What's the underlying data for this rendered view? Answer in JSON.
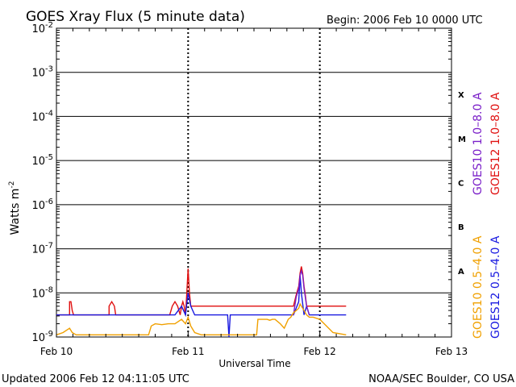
{
  "chart_data": {
    "type": "line",
    "title": "GOES Xray Flux (5 minute data)",
    "begin_label": "Begin:  2006 Feb 10 0000 UTC",
    "xlabel": "Universal Time",
    "ylabel": "Watts m",
    "ylabel_sup": "-2",
    "yscale": "log",
    "ylim_exp": [
      -9,
      -2
    ],
    "y_ticks": [
      {
        "base": "10",
        "exp": "-2",
        "value": -2
      },
      {
        "base": "10",
        "exp": "-3",
        "value": -3
      },
      {
        "base": "10",
        "exp": "-4",
        "value": -4
      },
      {
        "base": "10",
        "exp": "-5",
        "value": -5
      },
      {
        "base": "10",
        "exp": "-6",
        "value": -6
      },
      {
        "base": "10",
        "exp": "-7",
        "value": -7
      },
      {
        "base": "10",
        "exp": "-8",
        "value": -8
      },
      {
        "base": "10",
        "exp": "-9",
        "value": -9
      }
    ],
    "x_ticks": [
      {
        "label": "Feb 10",
        "value": 0
      },
      {
        "label": "Feb 11",
        "value": 1
      },
      {
        "label": "Feb 12",
        "value": 2
      },
      {
        "label": "Feb 13",
        "value": 3
      }
    ],
    "xlim_days": [
      0,
      3
    ],
    "class_labels": [
      {
        "label": "X",
        "value": -3.5
      },
      {
        "label": "M",
        "value": -4.5
      },
      {
        "label": "C",
        "value": -5.5
      },
      {
        "label": "B",
        "value": -6.5
      },
      {
        "label": "A",
        "value": -7.5
      }
    ],
    "legend_right": [
      {
        "name": "GOES10 1.0–8.0 A",
        "color": "#7a1ec8"
      },
      {
        "name": "GOES12 1.0–8.0 A",
        "color": "#e01010"
      }
    ],
    "legend_bottom": [
      {
        "name": "GOES10 0.5–4.0 A",
        "color": "#f0a000"
      },
      {
        "name": "GOES12 0.5–4.0 A",
        "color": "#1818e0"
      }
    ],
    "series": [
      {
        "name": "GOES12 1.0–8.0 A",
        "color": "#e01010",
        "x": [
          0,
          0.1,
          0.1,
          0.11,
          0.12,
          0.13,
          0.4,
          0.4,
          0.42,
          0.44,
          0.45,
          0.6,
          0.61,
          0.62,
          0.63,
          0.65,
          0.66,
          0.68,
          0.7,
          0.72,
          0.74,
          0.76,
          0.8,
          0.82,
          0.84,
          0.86,
          0.88,
          0.9,
          0.92,
          0.94,
          0.95,
          0.96,
          0.97,
          0.98,
          0.99,
          1.0,
          1.01,
          1.02,
          1.04,
          1.08,
          1.3,
          1.4,
          1.5,
          1.55,
          1.6,
          1.62,
          1.64,
          1.65,
          1.66,
          1.68,
          1.7,
          1.75,
          1.8,
          1.82,
          1.84,
          1.85,
          1.86,
          1.87,
          1.88,
          1.89,
          1.9,
          1.92,
          1.93,
          1.95,
          2.0,
          2.1,
          2.2
        ],
        "y": [
          -8.5,
          -8.5,
          -8.2,
          -8.2,
          -8.4,
          -8.5,
          -8.5,
          -8.3,
          -8.2,
          -8.3,
          -8.5,
          -8.5,
          -8.5,
          -8.5,
          -8.5,
          -8.5,
          -8.5,
          -8.5,
          -8.5,
          -8.5,
          -8.5,
          -8.5,
          -8.5,
          -8.5,
          -8.5,
          -8.5,
          -8.3,
          -8.2,
          -8.3,
          -8.5,
          -8.3,
          -8.2,
          -8.3,
          -8.5,
          -8.0,
          -7.45,
          -8.0,
          -8.3,
          -8.3,
          -8.3,
          -8.3,
          -8.3,
          -8.3,
          -8.3,
          -8.3,
          -8.3,
          -8.3,
          -8.3,
          -8.3,
          -8.3,
          -8.3,
          -8.3,
          -8.3,
          -8.05,
          -7.85,
          -7.55,
          -7.4,
          -7.55,
          -7.85,
          -8.05,
          -8.3,
          -8.3,
          -8.3,
          -8.3,
          -8.3,
          -8.3,
          -8.3
        ]
      },
      {
        "name": "GOES12 0.5–4.0 A",
        "color": "#1818e0",
        "x": [
          0,
          0.5,
          0.9,
          0.95,
          0.98,
          1.0,
          1.02,
          1.05,
          1.3,
          1.31,
          1.32,
          1.6,
          1.8,
          1.84,
          1.85,
          1.86,
          1.88,
          1.9,
          1.92,
          2.0,
          2.2
        ],
        "y": [
          -8.5,
          -8.5,
          -8.5,
          -8.3,
          -8.5,
          -8.0,
          -8.3,
          -8.5,
          -8.5,
          -9.0,
          -8.5,
          -8.5,
          -8.5,
          -8.2,
          -7.6,
          -8.0,
          -8.5,
          -8.3,
          -8.5,
          -8.5,
          -8.5
        ]
      },
      {
        "name": "GOES10 1.0–8.0 A",
        "color": "#7a1ec8",
        "x": [
          1.8,
          1.82,
          1.84,
          1.85,
          1.86,
          1.87,
          1.88,
          1.9,
          1.92
        ],
        "y": [
          -8.5,
          -8.1,
          -7.9,
          -7.6,
          -7.5,
          -7.6,
          -7.9,
          -8.3,
          -8.5
        ]
      },
      {
        "name": "GOES10 0.5–4.0 A",
        "color": "#f0a000",
        "x": [
          0,
          0.05,
          0.1,
          0.12,
          0.15,
          0.3,
          0.45,
          0.6,
          0.7,
          0.72,
          0.75,
          0.8,
          0.85,
          0.9,
          0.95,
          0.98,
          1.0,
          1.02,
          1.05,
          1.1,
          1.2,
          1.4,
          1.5,
          1.52,
          1.53,
          1.55,
          1.6,
          1.62,
          1.64,
          1.66,
          1.7,
          1.73,
          1.76,
          1.78,
          1.8,
          1.82,
          1.84,
          1.85,
          1.86,
          1.88,
          1.9,
          1.92,
          1.95,
          2.0,
          2.1,
          2.2
        ],
        "y": [
          -8.95,
          -8.9,
          -8.8,
          -8.9,
          -8.95,
          -8.95,
          -8.95,
          -8.95,
          -8.95,
          -8.75,
          -8.7,
          -8.72,
          -8.7,
          -8.7,
          -8.6,
          -8.7,
          -8.55,
          -8.75,
          -8.9,
          -8.95,
          -8.95,
          -8.95,
          -8.95,
          -8.95,
          -8.6,
          -8.6,
          -8.6,
          -8.62,
          -8.6,
          -8.6,
          -8.7,
          -8.8,
          -8.6,
          -8.55,
          -8.45,
          -8.4,
          -8.35,
          -8.25,
          -8.3,
          -8.4,
          -8.5,
          -8.55,
          -8.55,
          -8.6,
          -8.9,
          -8.95
        ]
      }
    ]
  },
  "footer": {
    "updated": "Updated 2006 Feb 12 04:11:05 UTC",
    "credit": "NOAA/SEC Boulder, CO USA"
  }
}
